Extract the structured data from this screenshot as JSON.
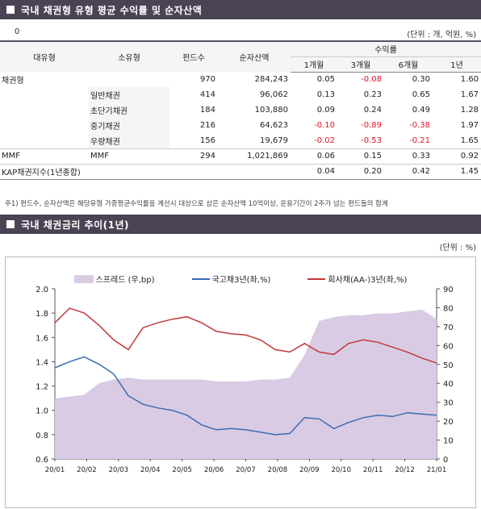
{
  "section1": {
    "title": "국내 채권형 유형 평균 수익률 및 순자산액"
  },
  "section2": {
    "title": "국내 채권금리 추이(1년)"
  },
  "table": {
    "top_left": "0",
    "unit": "(단위 : 개, 억원, %)",
    "headers": {
      "major": "대유형",
      "minor": "소유형",
      "funds": "펀드수",
      "assets": "순자산액",
      "returns": "수익률",
      "m1": "1개월",
      "m3": "3개월",
      "m6": "6개월",
      "y1": "1년"
    },
    "rows": [
      {
        "major": "채권형",
        "minor": "",
        "funds": "970",
        "assets": "284,243",
        "m1": "0.05",
        "m3": "-0.08",
        "m6": "0.30",
        "y1": "1.60"
      },
      {
        "major": "",
        "minor": "일반채권",
        "funds": "414",
        "assets": "96,062",
        "m1": "0.13",
        "m3": "0.23",
        "m6": "0.65",
        "y1": "1.67"
      },
      {
        "major": "",
        "minor": "초단기채권",
        "funds": "184",
        "assets": "103,880",
        "m1": "0.09",
        "m3": "0.24",
        "m6": "0.49",
        "y1": "1.28"
      },
      {
        "major": "",
        "minor": "중기채권",
        "funds": "216",
        "assets": "64,623",
        "m1": "-0.10",
        "m3": "-0.89",
        "m6": "-0.38",
        "y1": "1.97"
      },
      {
        "major": "",
        "minor": "우량채권",
        "funds": "156",
        "assets": "19,679",
        "m1": "-0.02",
        "m3": "-0.53",
        "m6": "-0.21",
        "y1": "1.65"
      },
      {
        "major": "MMF",
        "minor": "MMF",
        "funds": "294",
        "assets": "1,021,869",
        "m1": "0.06",
        "m3": "0.15",
        "m6": "0.33",
        "y1": "0.92"
      },
      {
        "major": "KAP채권지수(1년종합)",
        "minor": "",
        "funds": "",
        "assets": "",
        "m1": "0.04",
        "m3": "0.20",
        "m6": "0.42",
        "y1": "1.45"
      }
    ]
  },
  "note": "주1) 펀드수, 순자산액은 해당유형 가중평균수익률을 계산시 대상으로 삼은 순자산액 10억이상, 운용기간이 2주가 넘는 펀드들의 합계",
  "chart_unit": "(단위 : %)",
  "chart_data": {
    "type": "line",
    "x_labels": [
      "20/01",
      "20/02",
      "20/03",
      "20/04",
      "20/05",
      "20/06",
      "20/07",
      "20/08",
      "20/09",
      "20/10",
      "20/11",
      "20/12",
      "21/01"
    ],
    "y_left": {
      "min": 0.6,
      "max": 2.0,
      "ticks": [
        "0.6",
        "0.8",
        "1.0",
        "1.2",
        "1.4",
        "1.6",
        "1.8",
        "2.0"
      ]
    },
    "y_right": {
      "min": 0,
      "max": 90,
      "ticks": [
        "0",
        "10",
        "20",
        "30",
        "40",
        "50",
        "60",
        "70",
        "80",
        "90"
      ]
    },
    "series": [
      {
        "name": "스프레드 (우,bp)",
        "type": "area",
        "axis": "right",
        "color": "#d9cbe3",
        "values": [
          32,
          33,
          34,
          40,
          42,
          43,
          42,
          42,
          42,
          42,
          42,
          41,
          41,
          41,
          42,
          42,
          43,
          55,
          73,
          75,
          76,
          76,
          77,
          77,
          78,
          79,
          74
        ]
      },
      {
        "name": "국고채3년(좌,%)",
        "type": "line",
        "axis": "left",
        "color": "#3a6db3",
        "values": [
          1.35,
          1.4,
          1.44,
          1.38,
          1.3,
          1.12,
          1.05,
          1.02,
          1.0,
          0.96,
          0.88,
          0.84,
          0.85,
          0.84,
          0.82,
          0.8,
          0.81,
          0.94,
          0.93,
          0.85,
          0.9,
          0.94,
          0.96,
          0.95,
          0.98,
          0.97,
          0.96
        ]
      },
      {
        "name": "회사채(AA-)3년(좌,%)",
        "type": "line",
        "axis": "left",
        "color": "#c0393b",
        "values": [
          1.72,
          1.84,
          1.8,
          1.7,
          1.58,
          1.5,
          1.68,
          1.72,
          1.75,
          1.77,
          1.72,
          1.65,
          1.63,
          1.62,
          1.58,
          1.5,
          1.48,
          1.55,
          1.48,
          1.46,
          1.55,
          1.58,
          1.56,
          1.52,
          1.48,
          1.43,
          1.39
        ]
      }
    ]
  }
}
